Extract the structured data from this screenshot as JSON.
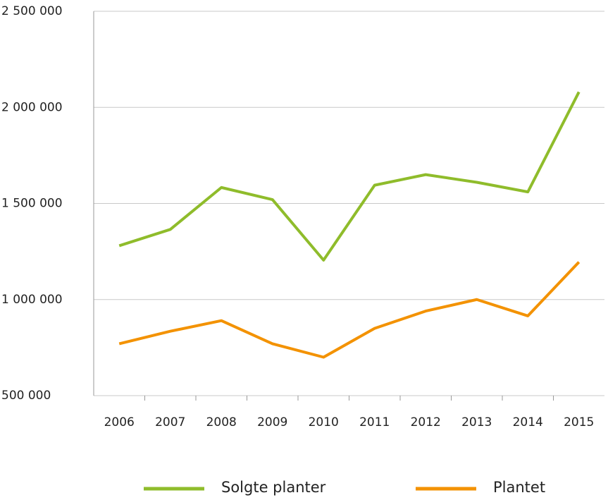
{
  "chart_data": {
    "type": "line",
    "categories": [
      "2006",
      "2007",
      "2008",
      "2009",
      "2010",
      "2011",
      "2012",
      "2013",
      "2014",
      "2015"
    ],
    "series": [
      {
        "name": "Solgte planter",
        "color": "#8fbc2b",
        "values": [
          1280000,
          1365000,
          1583000,
          1520000,
          1205000,
          1595000,
          1650000,
          1610000,
          1560000,
          2080000
        ]
      },
      {
        "name": "Plantet",
        "color": "#f39200",
        "values": [
          770000,
          835000,
          890000,
          770000,
          700000,
          850000,
          940000,
          1000000,
          915000,
          1195000
        ]
      }
    ],
    "ylim": [
      500000,
      2500000
    ],
    "yticks": [
      {
        "value": 500000,
        "label": "500 000"
      },
      {
        "value": 1000000,
        "label": "1 000 000"
      },
      {
        "value": 1500000,
        "label": "1 500 000"
      },
      {
        "value": 2000000,
        "label": "2 000 000"
      },
      {
        "value": 2500000,
        "label": "2 500 000"
      }
    ],
    "grid": true,
    "legend": "bottom"
  }
}
